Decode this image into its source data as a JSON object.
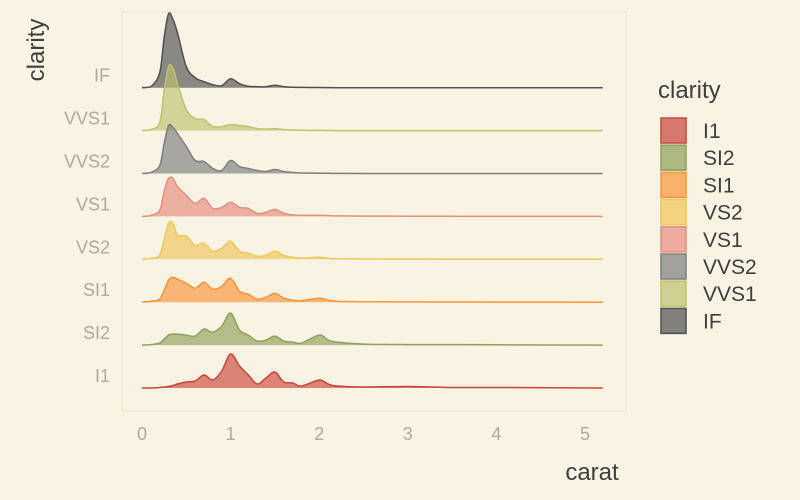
{
  "chart_data": {
    "type": "ridgeline",
    "xlabel": "carat",
    "ylabel": "clarity",
    "xlim": [
      -0.25,
      5.5
    ],
    "x_ticks": [
      0,
      1,
      2,
      3,
      4,
      5
    ],
    "grid": false,
    "legend": {
      "title": "clarity",
      "position": "right"
    },
    "x": [
      0,
      0.1,
      0.2,
      0.25,
      0.3,
      0.35,
      0.4,
      0.5,
      0.6,
      0.7,
      0.8,
      0.9,
      1.0,
      1.1,
      1.2,
      1.3,
      1.4,
      1.5,
      1.6,
      1.7,
      1.8,
      2.0,
      2.1,
      2.2,
      2.5,
      3.0,
      3.5,
      4.0,
      5.2
    ],
    "series": [
      {
        "name": "I1",
        "color": "#c9463d",
        "density": [
          0,
          0,
          0.5,
          1,
          1.5,
          2.5,
          4,
          6,
          7,
          13,
          8,
          17,
          34,
          22,
          13,
          4,
          10,
          16,
          6,
          5,
          2,
          8,
          4,
          2,
          1,
          1.5,
          0.5,
          0.5,
          0
        ]
      },
      {
        "name": "SI2",
        "color": "#8fa05a",
        "density": [
          0,
          0.5,
          2,
          6,
          10,
          11,
          11,
          10,
          9,
          16,
          13,
          19,
          32,
          15,
          10,
          4,
          5,
          9,
          4,
          3,
          2,
          10,
          5,
          3,
          1,
          0.5,
          0.5,
          0.3,
          0
        ]
      },
      {
        "name": "SI1",
        "color": "#f7943a",
        "density": [
          0,
          1,
          3,
          12,
          22,
          25,
          23,
          19,
          14,
          20,
          13,
          16,
          24,
          11,
          8,
          3,
          5,
          9,
          4,
          2,
          1.5,
          4,
          2,
          1,
          0.5,
          0.3,
          0.2,
          0.1,
          0
        ]
      },
      {
        "name": "VS2",
        "color": "#f0c55a",
        "density": [
          0,
          1,
          4,
          20,
          36,
          36,
          24,
          23,
          14,
          16,
          8,
          11,
          18,
          8,
          6,
          3,
          4,
          8,
          4,
          2,
          1,
          2,
          1,
          0.5,
          0.3,
          0.2,
          0.1,
          0,
          0
        ]
      },
      {
        "name": "VS1",
        "color": "#e58c80",
        "density": [
          0,
          1,
          6,
          25,
          38,
          38,
          30,
          21,
          13,
          18,
          8,
          9,
          14,
          9,
          8,
          3,
          4,
          7,
          3,
          1.5,
          1,
          1,
          0.8,
          0.5,
          0.3,
          0.2,
          0.1,
          0,
          0
        ]
      },
      {
        "name": "VVS2",
        "color": "#7d7d7d",
        "density": [
          0,
          1,
          8,
          30,
          48,
          46,
          40,
          27,
          13,
          12,
          5,
          3,
          13,
          7,
          5,
          3,
          2,
          4,
          2,
          1,
          0.5,
          0.3,
          0.2,
          0.1,
          0,
          0,
          0,
          0,
          0
        ]
      },
      {
        "name": "VVS1",
        "color": "#bfc170",
        "density": [
          0,
          1,
          8,
          40,
          64,
          62,
          47,
          21,
          12,
          11,
          4,
          4,
          6,
          5,
          4,
          2,
          1.5,
          2,
          1,
          0.5,
          0.3,
          0.2,
          0.1,
          0,
          0,
          0,
          0,
          0,
          0
        ]
      },
      {
        "name": "IF",
        "color": "#4f4f4f",
        "density": [
          0,
          1,
          15,
          50,
          74,
          68,
          55,
          21,
          10,
          6,
          3,
          2,
          9,
          4,
          1.5,
          1,
          1,
          2.5,
          1,
          0.5,
          0.3,
          0.2,
          0.1,
          0,
          0,
          0,
          0,
          0,
          0
        ]
      }
    ]
  }
}
